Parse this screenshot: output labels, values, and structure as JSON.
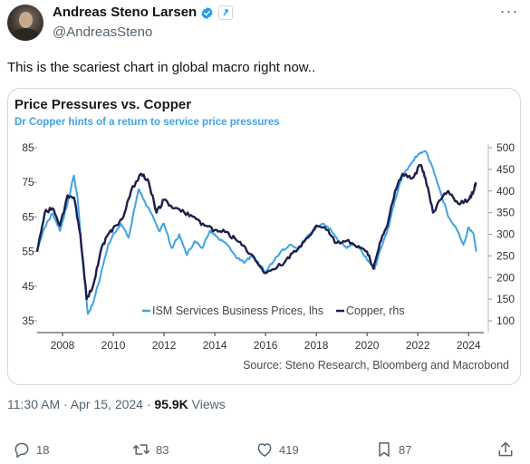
{
  "author": {
    "name": "Andreas Steno Larsen",
    "handle": "@AndreasSteno"
  },
  "tweet": {
    "text": "This is the scariest chart in global macro right now.."
  },
  "meta": {
    "time": "11:30 AM",
    "date": "Apr 15, 2024",
    "views_count": "95.9K",
    "views_label": "Views"
  },
  "actions": {
    "replies": "18",
    "reposts": "83",
    "likes": "419",
    "bookmarks": "87"
  },
  "colors": {
    "ism": "#3fa2e6",
    "copper": "#1c1f4a",
    "verified": "#1d9bf0"
  },
  "chart_data": {
    "type": "line",
    "title": "Price Pressures vs. Copper",
    "subtitle": "Dr Copper hints of a return to service price pressures",
    "source": "Source: Steno Research, Bloomberg and Macrobond",
    "x_ticks": [
      "2008",
      "2010",
      "2012",
      "2014",
      "2016",
      "2018",
      "2020",
      "2022",
      "2024"
    ],
    "xlim": [
      2007.0,
      2024.6
    ],
    "left_axis": {
      "ticks": [
        "85",
        "75",
        "65",
        "55",
        "45",
        "35"
      ],
      "ylim": [
        35,
        85
      ]
    },
    "right_axis": {
      "ticks": [
        "500",
        "450",
        "400",
        "350",
        "300",
        "250",
        "200",
        "150",
        "100"
      ],
      "ylim": [
        100,
        500
      ]
    },
    "grid": false,
    "legend_position": "bottom-center",
    "series": [
      {
        "name": "ISM Services Business Prices, lhs",
        "axis": "left",
        "x": [
          2007.0,
          2007.3,
          2007.6,
          2007.9,
          2008.2,
          2008.45,
          2008.6,
          2008.8,
          2009.0,
          2009.2,
          2009.5,
          2009.8,
          2010.0,
          2010.3,
          2010.6,
          2011.0,
          2011.2,
          2011.5,
          2011.8,
          2012.0,
          2012.3,
          2012.6,
          2012.9,
          2013.2,
          2013.5,
          2013.8,
          2014.0,
          2014.3,
          2014.6,
          2014.9,
          2015.2,
          2015.5,
          2015.8,
          2016.0,
          2016.3,
          2016.6,
          2017.0,
          2017.3,
          2017.6,
          2018.0,
          2018.3,
          2018.6,
          2018.9,
          2019.2,
          2019.5,
          2019.8,
          2020.1,
          2020.3,
          2020.5,
          2020.8,
          2021.1,
          2021.4,
          2021.7,
          2022.0,
          2022.3,
          2022.6,
          2022.9,
          2023.2,
          2023.5,
          2023.8,
          2024.0,
          2024.2,
          2024.3
        ],
        "values": [
          55,
          62,
          66,
          61,
          69,
          77,
          70,
          52,
          37,
          40,
          48,
          57,
          60,
          63,
          59,
          73,
          70,
          66,
          61,
          63,
          56,
          60,
          54,
          58,
          56,
          61,
          60,
          58,
          56,
          53,
          52,
          54,
          51,
          49,
          52,
          55,
          57,
          56,
          59,
          62,
          63,
          61,
          58,
          56,
          57,
          55,
          52,
          50,
          55,
          61,
          70,
          77,
          80,
          83,
          84,
          79,
          72,
          65,
          62,
          57,
          62,
          60,
          55
        ]
      },
      {
        "name": "Copper, rhs",
        "axis": "right",
        "x": [
          2007.0,
          2007.3,
          2007.6,
          2007.9,
          2008.2,
          2008.45,
          2008.7,
          2008.95,
          2009.2,
          2009.5,
          2009.8,
          2010.1,
          2010.4,
          2010.7,
          2011.1,
          2011.4,
          2011.7,
          2012.0,
          2012.4,
          2012.8,
          2013.2,
          2013.6,
          2014.0,
          2014.4,
          2014.8,
          2015.2,
          2015.6,
          2016.0,
          2016.4,
          2016.8,
          2017.2,
          2017.6,
          2018.0,
          2018.4,
          2018.8,
          2019.2,
          2019.6,
          2020.0,
          2020.25,
          2020.5,
          2020.8,
          2021.1,
          2021.4,
          2021.8,
          2022.1,
          2022.3,
          2022.6,
          2022.9,
          2023.2,
          2023.6,
          2024.0,
          2024.2,
          2024.3
        ],
        "values": [
          260,
          350,
          360,
          320,
          390,
          385,
          300,
          150,
          180,
          260,
          300,
          320,
          340,
          400,
          440,
          420,
          350,
          380,
          360,
          350,
          340,
          320,
          310,
          305,
          290,
          270,
          240,
          210,
          220,
          240,
          260,
          290,
          320,
          310,
          280,
          285,
          270,
          260,
          220,
          280,
          320,
          400,
          440,
          430,
          460,
          430,
          350,
          380,
          400,
          370,
          380,
          400,
          420
        ]
      }
    ]
  }
}
